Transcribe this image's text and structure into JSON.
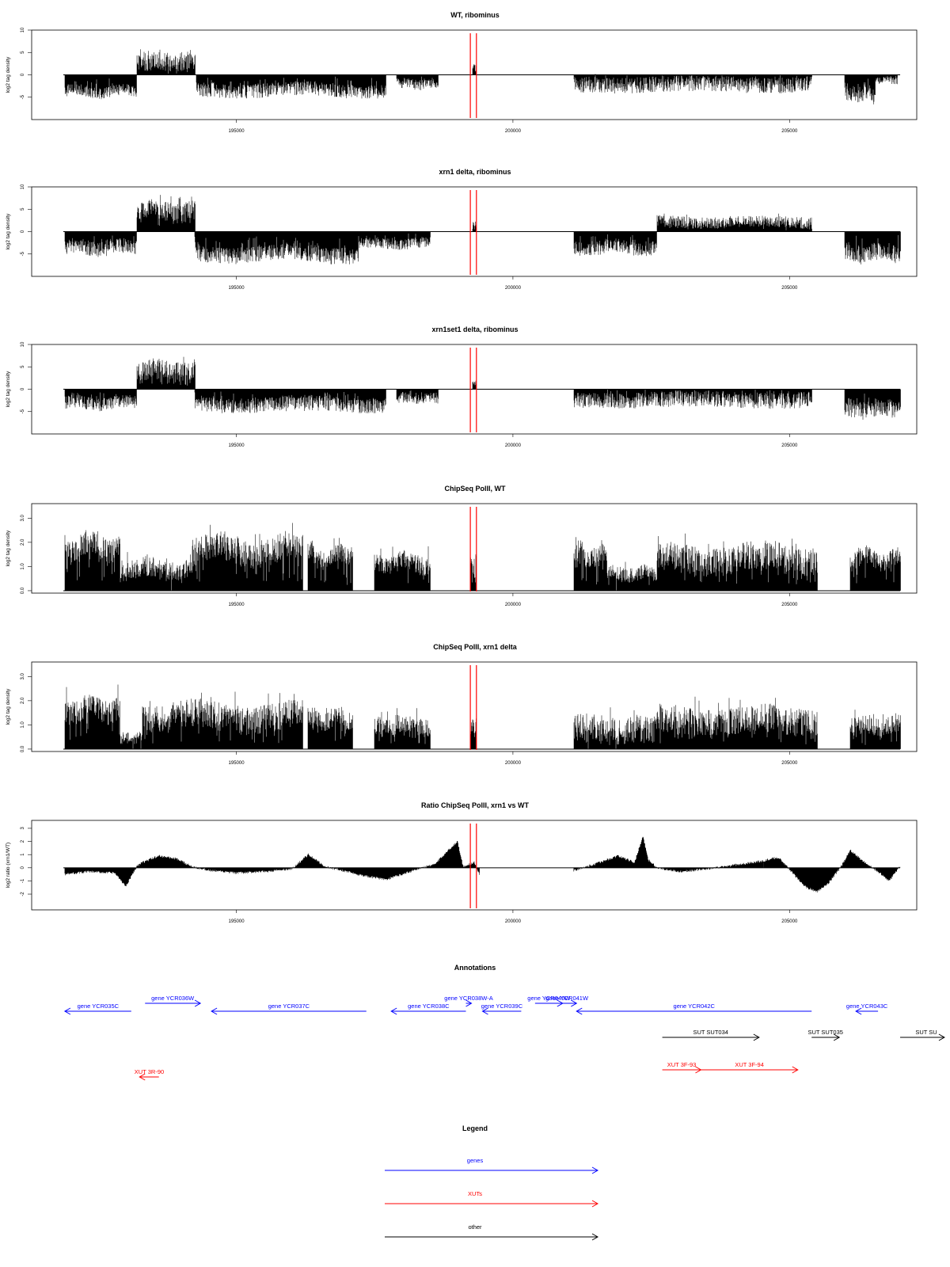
{
  "chart_data": [
    {
      "type": "bar",
      "title": "WT, ribominus",
      "ylabel": "log2 tag density",
      "ylim": [
        -10,
        10
      ],
      "yticks": [
        "-5",
        "0",
        "5",
        "10"
      ],
      "xlim": [
        191300,
        207300
      ],
      "xticks": [
        "195000",
        "200000",
        "205000"
      ],
      "markers": [
        199230,
        199340
      ],
      "segments": [
        {
          "x0": 191900,
          "x1": 193200,
          "base": -4.2,
          "amp": 1.3,
          "jitter": 0.7
        },
        {
          "x0": 193200,
          "x1": 194250,
          "base": 3.5,
          "amp": 2.2,
          "jitter": 0.6
        },
        {
          "x0": 194280,
          "x1": 197700,
          "base": -3.8,
          "amp": 1.6,
          "jitter": 0.6
        },
        {
          "x0": 197900,
          "x1": 198650,
          "base": -2.3,
          "amp": 1.2,
          "jitter": 0.4
        },
        {
          "x0": 199270,
          "x1": 199330,
          "base": 1.8,
          "amp": 1.2,
          "jitter": 0.5
        },
        {
          "x0": 201100,
          "x1": 205400,
          "base": -2.4,
          "amp": 1.8,
          "jitter": 0.75
        },
        {
          "x0": 206000,
          "x1": 206550,
          "base": -4.7,
          "amp": 2.0,
          "jitter": 0.7
        },
        {
          "x0": 206550,
          "x1": 206950,
          "base": -1.4,
          "amp": 0.8,
          "jitter": 0.3
        }
      ]
    },
    {
      "type": "bar",
      "title": "xrn1 delta, ribominus",
      "ylabel": "log2 tag density",
      "ylim": [
        -10,
        10
      ],
      "yticks": [
        "-5",
        "0",
        "5",
        "10"
      ],
      "xlim": [
        191300,
        207300
      ],
      "xticks": [
        "195000",
        "200000",
        "205000"
      ],
      "markers": [
        199230,
        199340
      ],
      "segments": [
        {
          "x0": 191900,
          "x1": 193200,
          "base": -4.0,
          "amp": 1.7,
          "jitter": 0.7
        },
        {
          "x0": 193200,
          "x1": 194250,
          "base": 5.0,
          "amp": 2.4,
          "jitter": 0.7
        },
        {
          "x0": 194250,
          "x1": 197200,
          "base": -5.5,
          "amp": 1.9,
          "jitter": 0.6
        },
        {
          "x0": 197200,
          "x1": 198500,
          "base": -3.0,
          "amp": 1.2,
          "jitter": 0.5
        },
        {
          "x0": 199270,
          "x1": 199330,
          "base": 1.5,
          "amp": 1.0,
          "jitter": 0.4
        },
        {
          "x0": 201100,
          "x1": 202600,
          "base": -4.0,
          "amp": 1.6,
          "jitter": 0.7
        },
        {
          "x0": 202600,
          "x1": 205400,
          "base": 2.4,
          "amp": 1.3,
          "jitter": 0.7
        },
        {
          "x0": 206000,
          "x1": 207000,
          "base": -5.3,
          "amp": 2.1,
          "jitter": 0.7
        }
      ]
    },
    {
      "type": "bar",
      "title": "xrn1set1 delta, ribominus",
      "ylabel": "log2 tag density",
      "ylim": [
        -10,
        10
      ],
      "yticks": [
        "-5",
        "0",
        "5",
        "10"
      ],
      "xlim": [
        191300,
        207300
      ],
      "xticks": [
        "195000",
        "200000",
        "205000"
      ],
      "markers": [
        199230,
        199340
      ],
      "segments": [
        {
          "x0": 191900,
          "x1": 193200,
          "base": -3.4,
          "amp": 1.5,
          "jitter": 0.7
        },
        {
          "x0": 193200,
          "x1": 194250,
          "base": 4.6,
          "amp": 2.4,
          "jitter": 0.7
        },
        {
          "x0": 194250,
          "x1": 197700,
          "base": -3.8,
          "amp": 1.7,
          "jitter": 0.6
        },
        {
          "x0": 197900,
          "x1": 198650,
          "base": -2.3,
          "amp": 1.2,
          "jitter": 0.4
        },
        {
          "x0": 199270,
          "x1": 199330,
          "base": 1.5,
          "amp": 1.0,
          "jitter": 0.4
        },
        {
          "x0": 201100,
          "x1": 205400,
          "base": -2.6,
          "amp": 1.8,
          "jitter": 0.75
        },
        {
          "x0": 206000,
          "x1": 207000,
          "base": -4.9,
          "amp": 2.1,
          "jitter": 0.7
        }
      ]
    },
    {
      "type": "bar",
      "title": "ChipSeq PolII, WT",
      "ylabel": "log2 tag density",
      "ylim": [
        -0.1,
        3.6
      ],
      "yticks": [
        "0.0",
        "1.0",
        "2.0",
        "3.0"
      ],
      "xlim": [
        191300,
        207300
      ],
      "xticks": [
        "195000",
        "200000",
        "205000"
      ],
      "markers": [
        199230,
        199340
      ],
      "segments": [
        {
          "x0": 191900,
          "x1": 192900,
          "base": 2.1,
          "amp": 0.5,
          "jitter": 0.5
        },
        {
          "x0": 192900,
          "x1": 194200,
          "base": 1.0,
          "amp": 0.4,
          "jitter": 0.5
        },
        {
          "x0": 194200,
          "x1": 196200,
          "base": 1.9,
          "amp": 0.6,
          "jitter": 0.5
        },
        {
          "x0": 196300,
          "x1": 197100,
          "base": 1.6,
          "amp": 0.4,
          "jitter": 0.5
        },
        {
          "x0": 197500,
          "x1": 198500,
          "base": 1.3,
          "amp": 0.4,
          "jitter": 0.5
        },
        {
          "x0": 199230,
          "x1": 199330,
          "base": 1.2,
          "amp": 0.5,
          "jitter": 0.5
        },
        {
          "x0": 201100,
          "x1": 201700,
          "base": 1.6,
          "amp": 0.5,
          "jitter": 0.5
        },
        {
          "x0": 201700,
          "x1": 202600,
          "base": 0.8,
          "amp": 0.3,
          "jitter": 0.5
        },
        {
          "x0": 202600,
          "x1": 205500,
          "base": 1.5,
          "amp": 0.6,
          "jitter": 0.5
        },
        {
          "x0": 206100,
          "x1": 207000,
          "base": 1.5,
          "amp": 0.4,
          "jitter": 0.5
        }
      ]
    },
    {
      "type": "bar",
      "title": "ChipSeq PolII, xrn1 delta",
      "ylabel": "log2 tag density",
      "ylim": [
        -0.1,
        3.6
      ],
      "yticks": [
        "0.0",
        "1.0",
        "2.0",
        "3.0"
      ],
      "xlim": [
        191300,
        207300
      ],
      "xticks": [
        "195000",
        "200000",
        "205000"
      ],
      "markers": [
        199230,
        199340
      ],
      "segments": [
        {
          "x0": 191900,
          "x1": 192900,
          "base": 1.9,
          "amp": 0.5,
          "jitter": 0.5
        },
        {
          "x0": 192900,
          "x1": 193300,
          "base": 0.5,
          "amp": 0.2,
          "jitter": 0.4
        },
        {
          "x0": 193300,
          "x1": 196200,
          "base": 1.5,
          "amp": 0.6,
          "jitter": 0.5
        },
        {
          "x0": 196300,
          "x1": 197100,
          "base": 1.4,
          "amp": 0.4,
          "jitter": 0.5
        },
        {
          "x0": 197500,
          "x1": 198500,
          "base": 1.1,
          "amp": 0.4,
          "jitter": 0.5
        },
        {
          "x0": 199230,
          "x1": 199330,
          "base": 0.9,
          "amp": 0.4,
          "jitter": 0.5
        },
        {
          "x0": 201100,
          "x1": 202600,
          "base": 0.9,
          "amp": 0.6,
          "jitter": 0.5
        },
        {
          "x0": 202600,
          "x1": 205500,
          "base": 1.3,
          "amp": 0.6,
          "jitter": 0.5
        },
        {
          "x0": 206100,
          "x1": 207000,
          "base": 1.1,
          "amp": 0.4,
          "jitter": 0.5
        }
      ]
    },
    {
      "type": "area",
      "title": "Ratio ChipSeq PolII, xrn1 vs WT",
      "ylabel": "log2 ratio (xrn1/WT)",
      "ylim": [
        -3.2,
        3.6
      ],
      "yticks": [
        "-2",
        "-1",
        "0",
        "1",
        "2",
        "3"
      ],
      "xlim": [
        191300,
        207300
      ],
      "xticks": [
        "195000",
        "200000",
        "205000"
      ],
      "markers": [
        199230,
        199340
      ],
      "x": [
        191900,
        192300,
        192800,
        193000,
        193200,
        193300,
        193600,
        193900,
        194200,
        194500,
        195000,
        195500,
        196000,
        196300,
        196600,
        197000,
        197300,
        197700,
        198200,
        198600,
        198800,
        199000,
        199100,
        199300,
        199400,
        201100,
        201500,
        201900,
        202200,
        202350,
        202450,
        202600,
        203000,
        203500,
        204000,
        204500,
        204800,
        205100,
        205300,
        205500,
        205700,
        205900,
        206100,
        206300,
        206600,
        206800,
        207000
      ],
      "y": [
        -0.5,
        -0.3,
        -0.4,
        -1.4,
        0.1,
        0.4,
        0.9,
        0.7,
        0.1,
        -0.2,
        -0.4,
        -0.3,
        -0.1,
        1.0,
        0.1,
        -0.3,
        -0.6,
        -0.9,
        -0.2,
        0.3,
        1.2,
        2.0,
        0.1,
        0.4,
        -0.6,
        -0.2,
        0.3,
        0.9,
        0.4,
        2.4,
        0.6,
        0.0,
        -0.3,
        -0.1,
        0.2,
        0.5,
        0.8,
        -0.6,
        -1.5,
        -1.8,
        -1.2,
        -0.1,
        1.3,
        0.6,
        -0.3,
        -1.0,
        0.1
      ]
    }
  ],
  "annotations_panel": {
    "title": "Annotations",
    "xlim": [
      191300,
      207300
    ],
    "genes": [
      {
        "label": "gene YCR035C",
        "x0": 191900,
        "x1": 193100,
        "dir": "left",
        "lane": 0,
        "color": "#0000ff"
      },
      {
        "label": "gene YCR036W",
        "x0": 193350,
        "x1": 194350,
        "dir": "right",
        "lane": -1,
        "color": "#0000ff"
      },
      {
        "label": "gene YCR037C",
        "x0": 194550,
        "x1": 197350,
        "dir": "left",
        "lane": 0,
        "color": "#0000ff"
      },
      {
        "label": "gene YCR038C",
        "x0": 197800,
        "x1": 199150,
        "dir": "left",
        "lane": 0,
        "color": "#0000ff"
      },
      {
        "label": "gene YCR038W-A",
        "x0": 199150,
        "x1": 199250,
        "dir": "right",
        "lane": -1,
        "color": "#0000ff"
      },
      {
        "label": "gene YCR039C",
        "x0": 199450,
        "x1": 200150,
        "dir": "left",
        "lane": 0,
        "color": "#0000ff"
      },
      {
        "label": "gene YCR040W",
        "x0": 200400,
        "x1": 200900,
        "dir": "right",
        "lane": -1,
        "color": "#0000ff"
      },
      {
        "label": "gene YCR041W",
        "x0": 200800,
        "x1": 201150,
        "dir": "right",
        "lane": -1,
        "color": "#0000ff"
      },
      {
        "label": "gene YCR042C",
        "x0": 201150,
        "x1": 205400,
        "dir": "left",
        "lane": 0,
        "color": "#0000ff"
      },
      {
        "label": "gene YCR043C",
        "x0": 206200,
        "x1": 206600,
        "dir": "left",
        "lane": 0,
        "color": "#0000ff"
      },
      {
        "label": "SUT SUT034",
        "x0": 202700,
        "x1": 204450,
        "dir": "right",
        "lane": 1,
        "color": "#000000"
      },
      {
        "label": "SUT SUT035",
        "x0": 205400,
        "x1": 205900,
        "dir": "right",
        "lane": 1,
        "color": "#000000"
      },
      {
        "label": "SUT SU",
        "x0": 207000,
        "x1": 207800,
        "dir": "right",
        "lane": 1,
        "color": "#000000"
      },
      {
        "label": "XUT 3R-90",
        "x0": 193250,
        "x1": 193600,
        "dir": "left",
        "lane": 3,
        "color": "#ff0000"
      },
      {
        "label": "XUT 3F-93",
        "x0": 202700,
        "x1": 203400,
        "dir": "right",
        "lane": 2,
        "color": "#ff0000"
      },
      {
        "label": "XUT 3F-94",
        "x0": 203400,
        "x1": 205150,
        "dir": "right",
        "lane": 2,
        "color": "#ff0000"
      }
    ]
  },
  "legend_panel": {
    "title": "Legend",
    "items": [
      {
        "label": "genes",
        "color": "#0000ff"
      },
      {
        "label": "XUTs",
        "color": "#ff0000"
      },
      {
        "label": "other",
        "color": "#000000"
      }
    ]
  }
}
